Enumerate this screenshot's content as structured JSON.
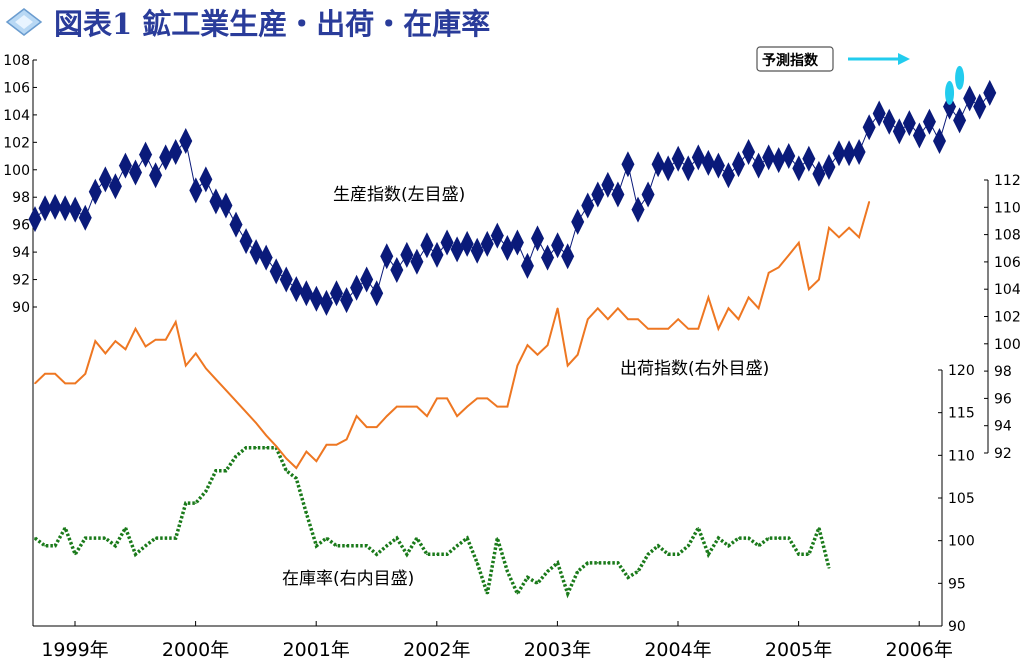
{
  "header": {
    "icon": "diamond-icon",
    "title": "図表1 鉱工業生産・出荷・在庫率"
  },
  "chart_data": {
    "type": "line",
    "title": "図表1 鉱工業生産・出荷・在庫率",
    "x_start": "1999-01",
    "x_labels": [
      "1999年",
      "2000年",
      "2001年",
      "2002年",
      "2003年",
      "2004年",
      "2005年",
      "2006年"
    ],
    "axes": {
      "left": {
        "min": 90,
        "max": 108,
        "ticks": [
          90,
          92,
          94,
          96,
          98,
          100,
          102,
          104,
          106,
          108
        ]
      },
      "right_outer": {
        "min": 92,
        "max": 112,
        "ticks": [
          92,
          94,
          96,
          98,
          100,
          102,
          104,
          106,
          108,
          110,
          112
        ]
      },
      "right_inner": {
        "min": 90,
        "max": 120,
        "ticks": [
          90,
          95,
          100,
          105,
          110,
          115,
          120
        ]
      }
    },
    "grid": false,
    "series": [
      {
        "name": "生産指数(左目盛)",
        "axis": "left",
        "marker": "diamond",
        "color": "#0a1a7a",
        "values": [
          96.4,
          97.2,
          97.3,
          97.2,
          97.1,
          96.5,
          98.4,
          99.3,
          98.8,
          100.3,
          99.8,
          101.1,
          99.6,
          100.9,
          101.3,
          102.1,
          98.5,
          99.3,
          97.7,
          97.4,
          96.0,
          94.8,
          94.0,
          93.6,
          92.6,
          92.0,
          91.3,
          91.0,
          90.6,
          90.3,
          91.0,
          90.5,
          91.4,
          92.0,
          91.0,
          93.7,
          92.7,
          93.8,
          93.3,
          94.5,
          93.8,
          94.7,
          94.2,
          94.6,
          94.1,
          94.6,
          95.2,
          94.3,
          94.7,
          93.0,
          95.0,
          93.6,
          94.5,
          93.7,
          96.2,
          97.4,
          98.2,
          98.9,
          98.2,
          100.4,
          97.1,
          98.2,
          100.4,
          100.1,
          100.8,
          100.1,
          100.9,
          100.5,
          100.3,
          99.6,
          100.4,
          101.3,
          100.3,
          100.9,
          100.7,
          101.0,
          100.1,
          100.8,
          99.7,
          100.2,
          101.2,
          101.2,
          101.3,
          103.1,
          104.1,
          103.5,
          102.8,
          103.4,
          102.5,
          103.5,
          102.1,
          104.6,
          103.6,
          105.2,
          104.6,
          105.6
        ]
      },
      {
        "name": "予測指数",
        "axis": "left",
        "marker": "ellipse",
        "color": "#22ccee",
        "points": [
          {
            "x": "2006-08",
            "y": 105.6
          },
          {
            "x": "2006-09",
            "y": 106.7
          }
        ]
      },
      {
        "name": "出荷指数(右外目盛)",
        "axis": "right_outer",
        "color": "#ee7722",
        "values": [
          97.1,
          97.8,
          97.8,
          97.1,
          97.1,
          97.8,
          100.2,
          99.3,
          100.2,
          99.6,
          101.1,
          99.8,
          100.3,
          100.3,
          101.6,
          98.4,
          99.3,
          98.2,
          97.4,
          96.6,
          95.8,
          95.0,
          94.2,
          93.3,
          92.5,
          91.6,
          90.9,
          92.1,
          91.4,
          92.6,
          92.6,
          93.0,
          94.7,
          93.9,
          93.9,
          94.7,
          95.4,
          95.4,
          95.4,
          94.7,
          96.0,
          96.0,
          94.7,
          95.4,
          96.0,
          96.0,
          95.4,
          95.4,
          98.4,
          99.9,
          99.2,
          99.9,
          102.6,
          98.4,
          99.2,
          101.8,
          102.6,
          101.8,
          102.6,
          101.8,
          101.8,
          101.1,
          101.1,
          101.1,
          101.8,
          101.1,
          101.1,
          103.4,
          101.1,
          102.6,
          101.8,
          103.4,
          102.6,
          105.2,
          105.6,
          106.5,
          107.4,
          104.0,
          104.7,
          108.5,
          107.8,
          108.5,
          107.8,
          110.4
        ]
      },
      {
        "name": "在庫率(右内目盛)",
        "axis": "right_inner",
        "dashed": true,
        "color": "#1a7a1a",
        "values": [
          100.3,
          99.4,
          99.4,
          101.5,
          98.4,
          100.3,
          100.3,
          100.3,
          99.4,
          101.5,
          98.4,
          99.4,
          100.3,
          100.3,
          100.3,
          104.4,
          104.4,
          105.8,
          108.2,
          108.2,
          109.9,
          110.9,
          110.9,
          110.9,
          110.9,
          108.2,
          107.3,
          103.2,
          99.4,
          100.3,
          99.4,
          99.4,
          99.4,
          99.4,
          98.4,
          99.4,
          100.3,
          98.4,
          100.3,
          98.4,
          98.4,
          98.4,
          99.4,
          100.3,
          97.4,
          93.8,
          100.3,
          96.4,
          93.8,
          95.7,
          95.0,
          96.4,
          97.4,
          93.8,
          96.4,
          97.4,
          97.4,
          97.4,
          97.4,
          95.7,
          96.4,
          98.4,
          99.4,
          98.4,
          98.4,
          99.4,
          101.5,
          98.4,
          100.3,
          99.4,
          100.3,
          100.3,
          99.4,
          100.3,
          100.3,
          100.3,
          98.4,
          98.4,
          101.5,
          96.8
        ]
      }
    ],
    "annotations": [
      {
        "text": "生産指数(左目盛)",
        "series": "生産指数(左目盛)"
      },
      {
        "text": "出荷指数(右外目盛)",
        "series": "出荷指数(右外目盛)"
      },
      {
        "text": "在庫率(右内目盛)",
        "series": "在庫率(右内目盛)"
      },
      {
        "text": "予測指数",
        "series": "予測指数",
        "arrow": true,
        "boxed": true
      }
    ]
  }
}
